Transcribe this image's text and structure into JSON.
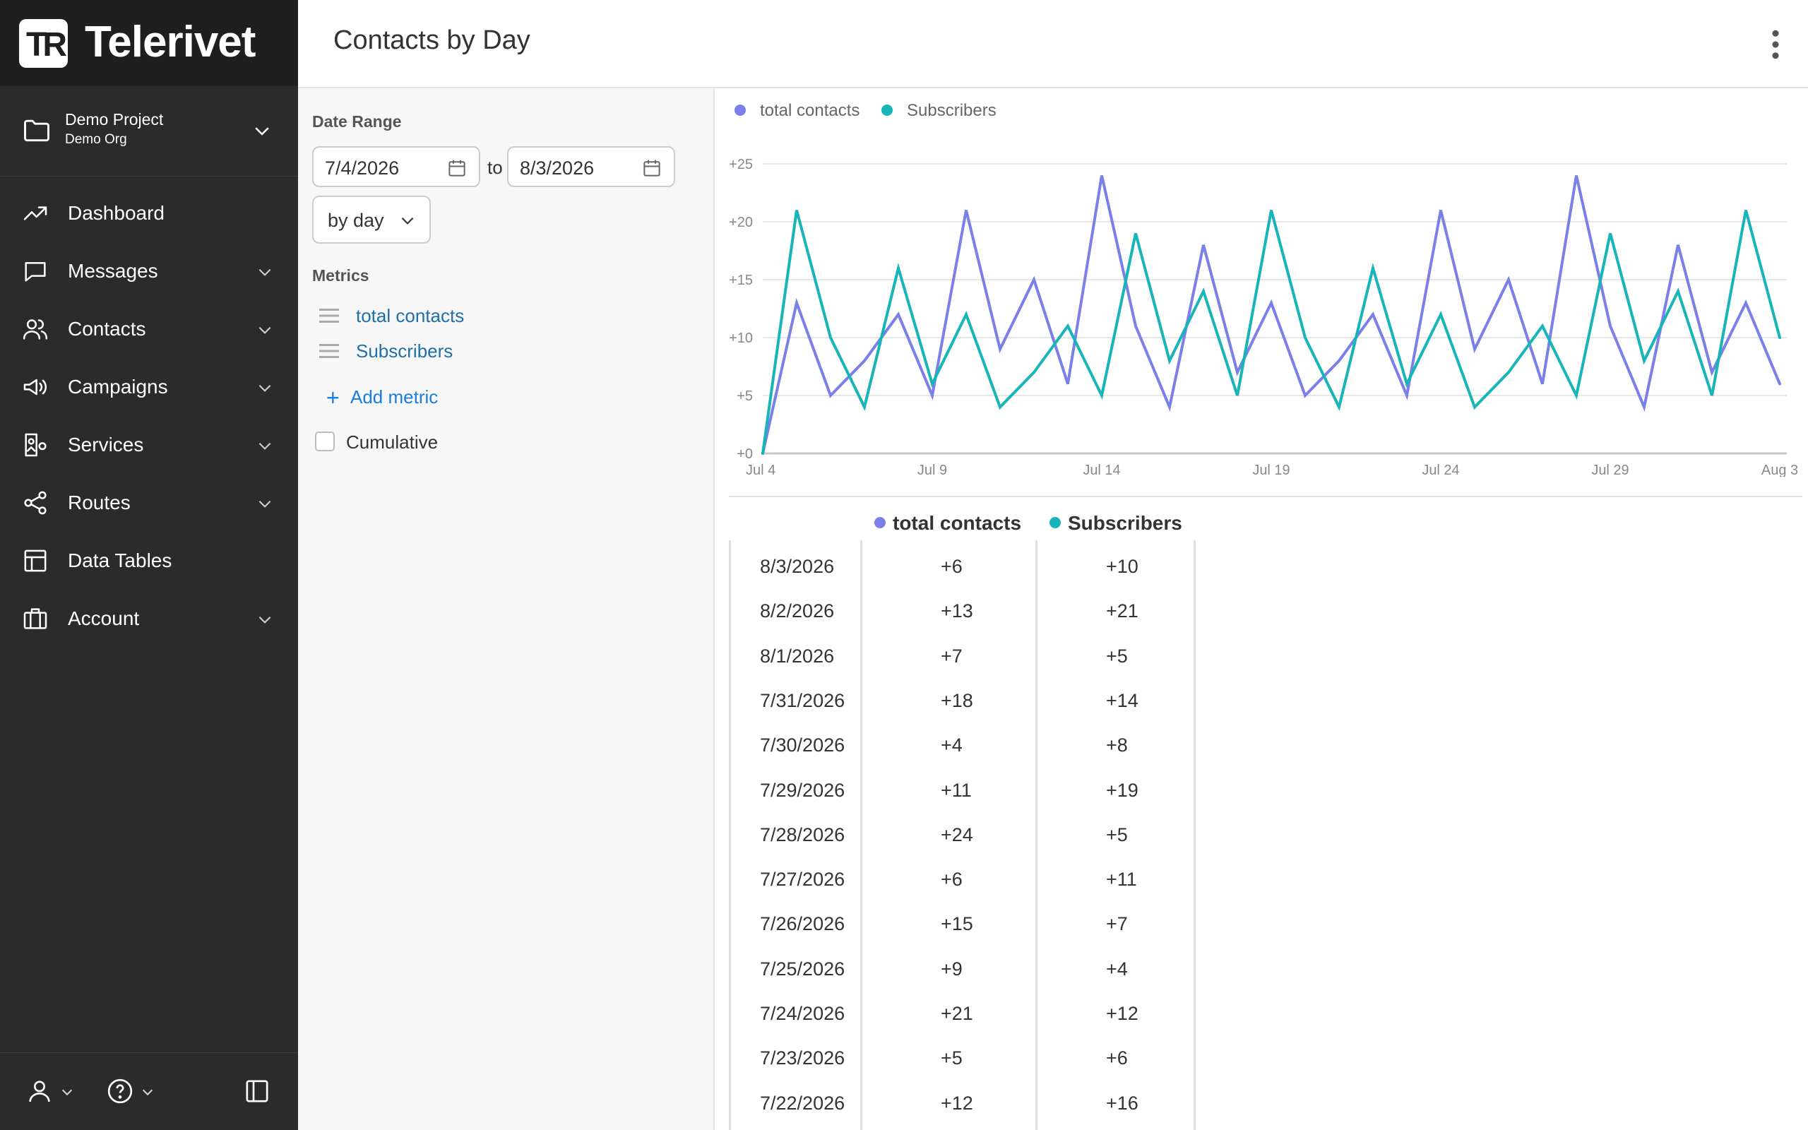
{
  "app": {
    "brand": "Telerivet",
    "logo_letters": "TR",
    "page_title": "Contacts by Day"
  },
  "project": {
    "name": "Demo Project",
    "org": "Demo Org"
  },
  "nav": [
    {
      "label": "Dashboard",
      "icon": "trend-icon",
      "has_children": false
    },
    {
      "label": "Messages",
      "icon": "chat-icon",
      "has_children": true
    },
    {
      "label": "Contacts",
      "icon": "users-icon",
      "has_children": true
    },
    {
      "label": "Campaigns",
      "icon": "megaphone-icon",
      "has_children": true
    },
    {
      "label": "Services",
      "icon": "services-icon",
      "has_children": true
    },
    {
      "label": "Routes",
      "icon": "share-icon",
      "has_children": true
    },
    {
      "label": "Data Tables",
      "icon": "table-icon",
      "has_children": false
    },
    {
      "label": "Account",
      "icon": "briefcase-icon",
      "has_children": true
    }
  ],
  "filters": {
    "date_range_label": "Date Range",
    "start_date": "7/4/2026",
    "to_label": "to",
    "end_date": "8/3/2026",
    "interval": "by day",
    "metrics_label": "Metrics",
    "metrics": [
      "total contacts",
      "Subscribers"
    ],
    "add_metric_label": "Add metric",
    "cumulative_label": "Cumulative",
    "cumulative_checked": false
  },
  "colors": {
    "series_1": "#7b7fe8",
    "series_2": "#17b5b8",
    "sidebar_bg": "#2b2b2b",
    "link": "#1f6fa8",
    "accent": "#1a7ce0"
  },
  "chart_data": {
    "type": "line",
    "x_tick_labels": [
      "Jul 4",
      "Jul 9",
      "Jul 14",
      "Jul 19",
      "Jul 24",
      "Jul 29",
      "Aug 3"
    ],
    "y_tick_labels": [
      "+0",
      "+5",
      "+10",
      "+15",
      "+20",
      "+25"
    ],
    "ylim": [
      0,
      25
    ],
    "grid": true,
    "legend_position": "top-left",
    "x": [
      "7/4/2026",
      "7/5/2026",
      "7/6/2026",
      "7/7/2026",
      "7/8/2026",
      "7/9/2026",
      "7/10/2026",
      "7/11/2026",
      "7/12/2026",
      "7/13/2026",
      "7/14/2026",
      "7/15/2026",
      "7/16/2026",
      "7/17/2026",
      "7/18/2026",
      "7/19/2026",
      "7/20/2026",
      "7/21/2026",
      "7/22/2026",
      "7/23/2026",
      "7/24/2026",
      "7/25/2026",
      "7/26/2026",
      "7/27/2026",
      "7/28/2026",
      "7/29/2026",
      "7/30/2026",
      "7/31/2026",
      "8/1/2026",
      "8/2/2026",
      "8/3/2026"
    ],
    "series": [
      {
        "name": "total contacts",
        "values": [
          0,
          13,
          5,
          8,
          12,
          5,
          21,
          9,
          15,
          6,
          24,
          11,
          4,
          18,
          7,
          13,
          5,
          8,
          12,
          5,
          21,
          9,
          15,
          6,
          24,
          11,
          4,
          18,
          7,
          13,
          6
        ]
      },
      {
        "name": "Subscribers",
        "values": [
          0,
          21,
          10,
          4,
          16,
          6,
          12,
          4,
          7,
          11,
          5,
          19,
          8,
          14,
          5,
          21,
          10,
          4,
          16,
          6,
          12,
          4,
          7,
          11,
          5,
          19,
          8,
          14,
          5,
          21,
          10
        ]
      }
    ]
  },
  "table": {
    "columns": [
      "total contacts",
      "Subscribers"
    ],
    "rows": [
      {
        "date": "8/3/2026",
        "total": "+6",
        "subs": "+10"
      },
      {
        "date": "8/2/2026",
        "total": "+13",
        "subs": "+21"
      },
      {
        "date": "8/1/2026",
        "total": "+7",
        "subs": "+5"
      },
      {
        "date": "7/31/2026",
        "total": "+18",
        "subs": "+14"
      },
      {
        "date": "7/30/2026",
        "total": "+4",
        "subs": "+8"
      },
      {
        "date": "7/29/2026",
        "total": "+11",
        "subs": "+19"
      },
      {
        "date": "7/28/2026",
        "total": "+24",
        "subs": "+5"
      },
      {
        "date": "7/27/2026",
        "total": "+6",
        "subs": "+11"
      },
      {
        "date": "7/26/2026",
        "total": "+15",
        "subs": "+7"
      },
      {
        "date": "7/25/2026",
        "total": "+9",
        "subs": "+4"
      },
      {
        "date": "7/24/2026",
        "total": "+21",
        "subs": "+12"
      },
      {
        "date": "7/23/2026",
        "total": "+5",
        "subs": "+6"
      },
      {
        "date": "7/22/2026",
        "total": "+12",
        "subs": "+16"
      }
    ]
  }
}
